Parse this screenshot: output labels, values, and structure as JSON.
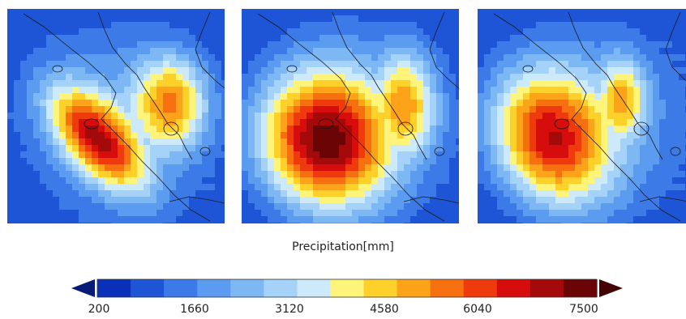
{
  "colorbar": {
    "title": "Precipitation[mm]",
    "ticks": [
      "200",
      "1660",
      "3120",
      "4580",
      "6040",
      "7500"
    ],
    "colors": [
      "#0a2fb8",
      "#1e55d6",
      "#3c7ae8",
      "#5c9cf0",
      "#7db8f5",
      "#a4d2f8",
      "#cdeafb",
      "#fff47a",
      "#fed12a",
      "#fca31a",
      "#f77010",
      "#ee3a0c",
      "#d70d0d",
      "#a50a0a",
      "#6b0505"
    ],
    "under_color": "#061a78",
    "over_color": "#430303"
  },
  "panels": [
    {
      "name": "panel-1",
      "peaks": [
        {
          "label": "west-sumatra-maximum",
          "value": 6800
        },
        {
          "label": "malay-peninsula-maximum",
          "value": 5300
        }
      ]
    },
    {
      "name": "panel-2",
      "peaks": [
        {
          "label": "west-sumatra-maximum",
          "value": 7400
        },
        {
          "label": "malay-peninsula-maximum",
          "value": 5000
        }
      ]
    },
    {
      "name": "panel-3",
      "peaks": [
        {
          "label": "west-sumatra-maximum",
          "value": 6600
        },
        {
          "label": "malay-peninsula-maximum",
          "value": 4900
        }
      ]
    }
  ]
}
